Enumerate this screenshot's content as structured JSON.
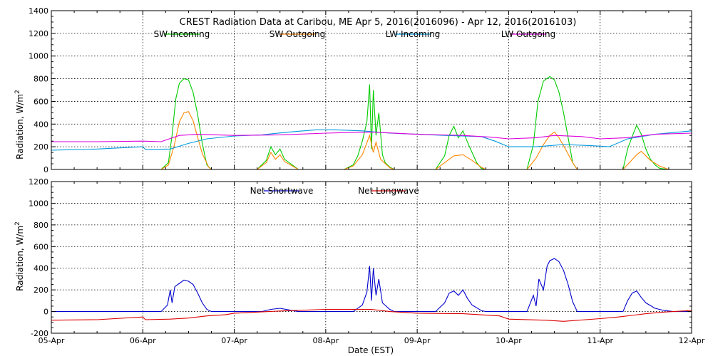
{
  "chart_data": [
    {
      "type": "line",
      "title": "CREST Radiation Data at Caribou, ME   Apr  5, 2016(2016096) - Apr 12, 2016(2016103)",
      "ylabel": "Radiation, W/m^2",
      "xlabel": "",
      "ylim": [
        0,
        1400
      ],
      "yticks": [
        0,
        200,
        400,
        600,
        800,
        1000,
        1200,
        1400
      ],
      "x_tick_labels": [
        "05-Apr",
        "06-Apr",
        "07-Apr",
        "08-Apr",
        "09-Apr",
        "10-Apr",
        "11-Apr",
        "12-Apr"
      ],
      "x_range_days": [
        0,
        7
      ],
      "grid": true,
      "legend": "top",
      "series": [
        {
          "name": "SW Incoming",
          "color": "#00cc00",
          "x": [
            0,
            1.2,
            1.28,
            1.32,
            1.36,
            1.4,
            1.45,
            1.5,
            1.55,
            1.6,
            1.65,
            1.7,
            1.75,
            2.25,
            2.35,
            2.4,
            2.45,
            2.5,
            2.55,
            2.65,
            2.7,
            3.2,
            3.3,
            3.35,
            3.4,
            3.45,
            3.48,
            3.5,
            3.52,
            3.55,
            3.58,
            3.62,
            3.65,
            3.7,
            3.75,
            4.2,
            4.3,
            4.35,
            4.4,
            4.45,
            4.5,
            4.55,
            4.6,
            4.65,
            4.7,
            4.75,
            5.2,
            5.27,
            5.32,
            5.38,
            5.45,
            5.5,
            5.55,
            5.6,
            5.65,
            5.7,
            5.75,
            6.25,
            6.3,
            6.35,
            6.4,
            6.45,
            6.5,
            6.55,
            6.6,
            6.65,
            6.75,
            7
          ],
          "values": [
            0,
            0,
            60,
            300,
            620,
            760,
            800,
            790,
            680,
            480,
            230,
            40,
            0,
            0,
            80,
            200,
            130,
            180,
            90,
            30,
            0,
            0,
            40,
            120,
            250,
            420,
            750,
            180,
            700,
            300,
            500,
            130,
            60,
            20,
            0,
            0,
            120,
            300,
            380,
            280,
            340,
            240,
            150,
            60,
            10,
            0,
            0,
            220,
            600,
            780,
            820,
            790,
            680,
            500,
            280,
            60,
            0,
            0,
            180,
            290,
            390,
            310,
            180,
            90,
            40,
            10,
            0,
            0
          ]
        },
        {
          "name": "SW Outgoing",
          "color": "#ff8800",
          "x": [
            0,
            1.2,
            1.28,
            1.34,
            1.4,
            1.45,
            1.5,
            1.55,
            1.6,
            1.65,
            1.72,
            1.75,
            2.25,
            2.35,
            2.4,
            2.45,
            2.5,
            2.55,
            2.7,
            3.2,
            3.3,
            3.4,
            3.48,
            3.52,
            3.55,
            3.6,
            3.7,
            3.75,
            4.2,
            4.3,
            4.4,
            4.5,
            4.6,
            4.7,
            4.75,
            5.2,
            5.3,
            5.38,
            5.45,
            5.5,
            5.55,
            5.62,
            5.7,
            5.75,
            6.25,
            6.32,
            6.4,
            6.45,
            6.55,
            6.65,
            6.75,
            7
          ],
          "values": [
            0,
            0,
            40,
            200,
            420,
            500,
            510,
            430,
            280,
            140,
            20,
            0,
            0,
            60,
            150,
            90,
            130,
            70,
            0,
            0,
            30,
            130,
            300,
            150,
            240,
            90,
            15,
            0,
            0,
            60,
            120,
            130,
            80,
            20,
            0,
            0,
            100,
            220,
            300,
            330,
            280,
            180,
            60,
            0,
            0,
            60,
            130,
            160,
            80,
            30,
            0,
            0
          ]
        },
        {
          "name": "LW Incoming",
          "color": "#0099dd",
          "x": [
            0,
            0.5,
            1.0,
            1.03,
            1.3,
            1.5,
            1.7,
            2.0,
            2.3,
            2.6,
            2.9,
            3.1,
            3.4,
            3.7,
            4.0,
            4.3,
            4.7,
            4.85,
            5.0,
            5.3,
            5.6,
            5.9,
            6.1,
            6.3,
            6.6,
            7.0
          ],
          "values": [
            170,
            180,
            200,
            175,
            180,
            230,
            270,
            295,
            305,
            330,
            350,
            350,
            340,
            320,
            310,
            300,
            290,
            250,
            200,
            200,
            220,
            210,
            200,
            270,
            310,
            340
          ]
        },
        {
          "name": "LW Outgoing",
          "color": "#dd00dd",
          "x": [
            0,
            0.5,
            1.0,
            1.2,
            1.4,
            1.6,
            2.0,
            2.5,
            3.0,
            3.5,
            4.0,
            4.5,
            4.8,
            5.0,
            5.3,
            5.5,
            5.8,
            6.0,
            6.3,
            6.6,
            7.0
          ],
          "values": [
            245,
            245,
            250,
            245,
            300,
            310,
            300,
            305,
            320,
            330,
            310,
            300,
            285,
            270,
            280,
            300,
            290,
            270,
            280,
            310,
            320
          ]
        }
      ]
    },
    {
      "type": "line",
      "title": "",
      "ylabel": "Radiation, W/m^2",
      "xlabel": "Date (EST)",
      "ylim": [
        -200,
        1200
      ],
      "yticks": [
        -200,
        0,
        200,
        400,
        600,
        800,
        1000,
        1200
      ],
      "x_tick_labels": [
        "05-Apr",
        "06-Apr",
        "07-Apr",
        "08-Apr",
        "09-Apr",
        "10-Apr",
        "11-Apr",
        "12-Apr"
      ],
      "x_range_days": [
        0,
        7
      ],
      "grid": true,
      "legend": "top",
      "series": [
        {
          "name": "Net Shortwave",
          "color": "#0000cc",
          "x": [
            0,
            1.2,
            1.27,
            1.3,
            1.32,
            1.35,
            1.4,
            1.45,
            1.5,
            1.55,
            1.6,
            1.65,
            1.7,
            1.75,
            2.3,
            2.4,
            2.5,
            2.6,
            2.7,
            3.3,
            3.4,
            3.45,
            3.48,
            3.5,
            3.52,
            3.55,
            3.58,
            3.62,
            3.7,
            3.75,
            4.2,
            4.3,
            4.35,
            4.4,
            4.45,
            4.5,
            4.55,
            4.6,
            4.7,
            4.75,
            5.2,
            5.27,
            5.3,
            5.33,
            5.38,
            5.42,
            5.45,
            5.5,
            5.55,
            5.6,
            5.65,
            5.7,
            5.75,
            6.25,
            6.3,
            6.35,
            6.4,
            6.45,
            6.5,
            6.6,
            6.7,
            6.8,
            7
          ],
          "values": [
            0,
            0,
            60,
            200,
            80,
            230,
            260,
            290,
            280,
            250,
            170,
            80,
            20,
            0,
            0,
            20,
            30,
            15,
            0,
            0,
            60,
            180,
            420,
            100,
            400,
            150,
            300,
            80,
            20,
            0,
            0,
            80,
            170,
            190,
            150,
            200,
            120,
            60,
            10,
            0,
            0,
            150,
            50,
            300,
            200,
            420,
            470,
            490,
            460,
            380,
            250,
            90,
            0,
            0,
            100,
            170,
            190,
            130,
            80,
            30,
            10,
            0,
            0
          ]
        },
        {
          "name": "Net Longwave",
          "color": "#dd0000",
          "x": [
            0,
            0.5,
            1.0,
            1.03,
            1.3,
            1.5,
            1.7,
            1.9,
            2.0,
            2.5,
            3.0,
            3.5,
            3.7,
            4.0,
            4.5,
            4.9,
            5.0,
            5.4,
            5.6,
            6.0,
            6.2,
            6.5,
            6.7,
            7.0
          ],
          "values": [
            -80,
            -75,
            -50,
            -75,
            -70,
            -60,
            -40,
            -30,
            -15,
            5,
            20,
            20,
            0,
            -15,
            -20,
            -40,
            -70,
            -80,
            -90,
            -65,
            -50,
            -20,
            -5,
            10
          ]
        }
      ]
    }
  ]
}
